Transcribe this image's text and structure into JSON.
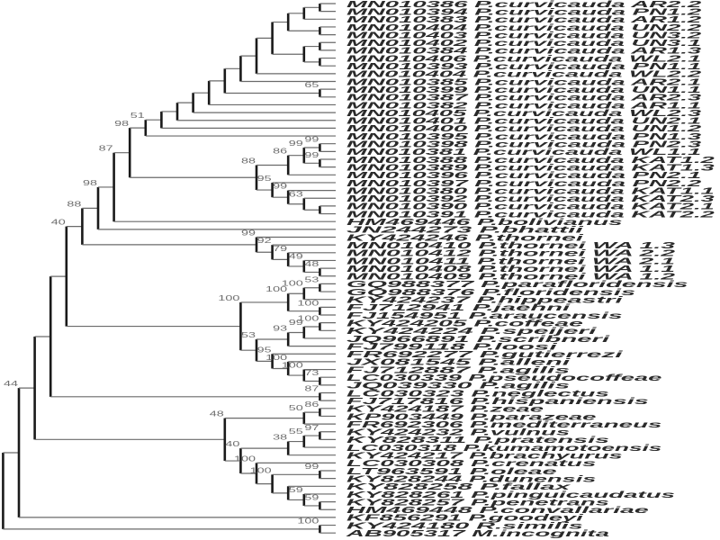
{
  "taxa": [
    "MN010386 P.curvicauda AR2.2",
    "MN010394 P.curvicauda PN1.2",
    "MN010383 P.curvicauda AR1.2",
    "MN010404 P.curvicauda UN2.2",
    "MN010403 P.curvicauda UN3.2",
    "MN010402 P.curvicauda UN3.1",
    "MN010384 P.curvicauda AR1.3",
    "MN010406 P.curvicauda WL2.1",
    "MN010393 P.curvicauda PN1.1",
    "MN010404 P.curvicauda WL2.2",
    "MN010385 P.curvicauda AR2.1",
    "MN010399 P.curvicauda UN1.1",
    "MN010387 P.curvicauda AR2.3",
    "MN010382 P.curvicauda AR1.1",
    "MN010405 P.curvicauda WL2.3",
    "MN010401 P.curvicauda UN2.1",
    "MN010400 P.curvicauda UN1.2",
    "MN010395 P.curvicauda PN1.3",
    "MN010398 P.curvicauda PN2.3",
    "MN010381 P.curvicauda WL1.1",
    "MN010388 P.curvicauda KAT1.2",
    "MN010389 P.curvicauda KAT1.3",
    "MN010396 P.curvicauda PN2.1",
    "MN010397 P.curvicauda PN2.2",
    "MN010380 P.curvicauda KAT1.1",
    "MN010392 P.curvicauda KAT2.3",
    "MN010390 P.curvicauda KAT2.1",
    "MN010391 P.curvicauda KAT2.2",
    "HM469446 P.bolivianus",
    "JN244273 P.bhattii",
    "KY424246 P.thornei",
    "MN010410 P.thornei WA 1.3",
    "MN010412 P.thornei WA 2.2",
    "MN010411 P.thornei WA 2.1",
    "MN010408 P.thornei WA 1.1",
    "MN010409 P.thornei WA 1.2",
    "GQ988377 P.parafloridensis",
    "GQ988376 P.floridensis",
    "KY424237 P.hippeastri",
    "FJ712941 P.jaehni",
    "FJ154951 P.araucensis",
    "KY424205 P.coffeae",
    "KY424224 P.speijeri",
    "JQ966891 P.scribneri",
    "FJ799118 P.loosi",
    "FR692277 P.gutierrezi",
    "JX081545 P.alleni",
    "FJ712887 P.agilis",
    "LC030339 P.pseudocoffeae",
    "JQ039330 P.agilis",
    "LC030323 P.neglectus",
    "FJ717816 P.hispaniensis",
    "KY424187 P.zeae",
    "KP903449 P.parazeae",
    "FR692306 P.mediterraneus",
    "KY424232 P.vulnus",
    "KY828311 P.pratensis",
    "LC030318 P.kumamotoensis",
    "KY424217 P.brachyurus",
    "LC030308 P.crenatus",
    "LT963591 P.oleae",
    "KY828244 P.dunensis",
    "KY828258 P.fallax",
    "KY828261 P.pinguicaudatus",
    "KY828257 P.penetrans",
    "HM469448 P.convallariae",
    "KF856291 P.goodeyi",
    "KY424180 R.similis",
    "AB905317 M.incognita"
  ],
  "tree": {
    "c": [
      {
        "s": "44",
        "c": [
          {
            "c": [
              {
                "c": [
                  {
                    "s": "40",
                    "c": [
                      {
                        "s": "88",
                        "c": [
                          {
                            "s": "98",
                            "c": [
                              {
                                "s": "87",
                                "c": [
                                  {
                                    "s": "98",
                                    "c": [
                                      {
                                        "s": "51",
                                        "c": [
                                          {
                                            "c": [
                                              {
                                                "c": [
                                                  {
                                                    "c": [
                                                      {
                                                        "c": [
                                                          {
                                                            "c": [
                                                              {
                                                                "c": [
                                                                  {
                                                                    "c": [
                                                                      {
                                                                        "c": [
                                                                          {
                                                                            "c": [
                                                                              {
                                                                                "c": [
                                                                                  {
                                                                                    "c": [
                                                                                      0,
                                                                                      1
                                                                                    ]
                                                                                  },
                                                                                  2
                                                                                ]
                                                                              },
                                                                              {
                                                                                "c": [
                                                                                  3,
                                                                                  4
                                                                                ]
                                                                              }
                                                                            ]
                                                                          },
                                                                          {
                                                                            "c": [
                                                                              {
                                                                                "c": [
                                                                                  5,
                                                                                  6
                                                                                ]
                                                                              },
                                                                              {
                                                                                "c": [
                                                                                  7,
                                                                                  8
                                                                                ]
                                                                              }
                                                                            ]
                                                                          }
                                                                        ]
                                                                      },
                                                                      9
                                                                    ]
                                                                  },
                                                                  10
                                                                ]
                                                              },
                                                              {
                                                                "s": "65",
                                                                "c": [
                                                                  11,
                                                                  12
                                                                ]
                                                              }
                                                            ]
                                                          },
                                                          13
                                                        ]
                                                      },
                                                      14
                                                    ]
                                                  },
                                                  15
                                                ]
                                              },
                                              16
                                            ]
                                          },
                                          17
                                        ]
                                      },
                                      {
                                        "s": "88",
                                        "c": [
                                          {
                                            "s": "86",
                                            "c": [
                                              {
                                                "s": "99",
                                                "c": [
                                                  {
                                                    "s": "99",
                                                    "c": [
                                                      18,
                                                      19
                                                    ]
                                                  },
                                                  {
                                                    "s": "99",
                                                    "c": [
                                                      20,
                                                      21
                                                    ]
                                                  }
                                                ]
                                              },
                                              22
                                            ]
                                          },
                                          {
                                            "s": "95",
                                            "c": [
                                              23,
                                              {
                                                "s": "99",
                                                "c": [
                                                  24,
                                                  {
                                                    "s": "63",
                                                    "c": [
                                                      25,
                                                      {
                                                        "c": [
                                                          26,
                                                          27
                                                        ]
                                                      }
                                                    ]
                                                  }
                                                ]
                                              }
                                            ]
                                          }
                                        ]
                                      }
                                    ]
                                  },
                                  28
                                ]
                              },
                              29
                            ]
                          },
                          {
                            "s": "99",
                            "c": [
                              30,
                              {
                                "s": "92",
                                "c": [
                                  31,
                                  {
                                    "s": "79",
                                    "c": [
                                      32,
                                      {
                                        "s": "49",
                                        "c": [
                                          33,
                                          {
                                            "s": "48",
                                            "c": [
                                              34,
                                              35
                                            ]
                                          }
                                        ]
                                      }
                                    ]
                                  }
                                ]
                              }
                            ]
                          }
                        ]
                      },
                      {
                        "s": "100",
                        "c": [
                          {
                            "s": "100",
                            "c": [
                              {
                                "s": "100",
                                "c": [
                                  {
                                    "s": "53",
                                    "c": [
                                      36,
                                      37
                                    ]
                                  },
                                  38
                                ]
                              },
                              {
                                "s": "100",
                                "c": [
                                  39,
                                  40
                                ]
                              }
                            ]
                          },
                          {
                            "s": "53",
                            "c": [
                              {
                                "s": "93",
                                "c": [
                                  {
                                    "s": "99",
                                    "c": [
                                      {
                                        "s": "100",
                                        "c": [
                                          41,
                                          42
                                        ]
                                      },
                                      43
                                    ]
                                  },
                                  44
                                ]
                              },
                              {
                                "s": "95",
                                "c": [
                                  45,
                                  {
                                    "s": "100",
                                    "c": [
                                      46,
                                      {
                                        "s": "100",
                                        "c": [
                                          47,
                                          {
                                            "s": "73",
                                            "c": [
                                              48,
                                              49
                                            ]
                                          }
                                        ]
                                      }
                                    ]
                                  }
                                ]
                              }
                            ]
                          }
                        ]
                      }
                    ]
                  },
                  {
                    "s": "87",
                    "c": [
                      50,
                      51
                    ]
                  }
                ]
              },
              {
                "s": "48",
                "c": [
                  {
                    "s": "50",
                    "c": [
                      {
                        "s": "86",
                        "c": [
                          52,
                          53
                        ]
                      },
                      54
                    ]
                  },
                  {
                    "s": "40",
                    "c": [
                      {
                        "s": "38",
                        "c": [
                          {
                            "s": "55",
                            "c": [
                              {
                                "s": "97",
                                "c": [
                                  55,
                                  56
                                ]
                              },
                              57
                            ]
                          },
                          58
                        ]
                      },
                      {
                        "s": "100",
                        "c": [
                          59,
                          {
                            "s": "100",
                            "c": [
                              {
                                "s": "99",
                                "c": [
                                  60,
                                  61
                                ]
                              },
                              {
                                "c": [
                                  62,
                                  {
                                    "s": "59",
                                    "c": [
                                      63,
                                      {
                                        "s": "59",
                                        "c": [
                                          64,
                                          65
                                        ]
                                      }
                                    ]
                                  }
                                ]
                              }
                            ]
                          }
                        ]
                      }
                    ]
                  }
                ]
              }
            ]
          },
          66
        ]
      },
      {
        "s": "100",
        "c": [
          67,
          68
        ]
      }
    ]
  },
  "colors": {
    "branch_horizontal": "#6a6a6a",
    "branch_vertical": "#1a1a1a",
    "taxon_text": "#2a2a2a",
    "support_text": "#6e6e6e"
  }
}
